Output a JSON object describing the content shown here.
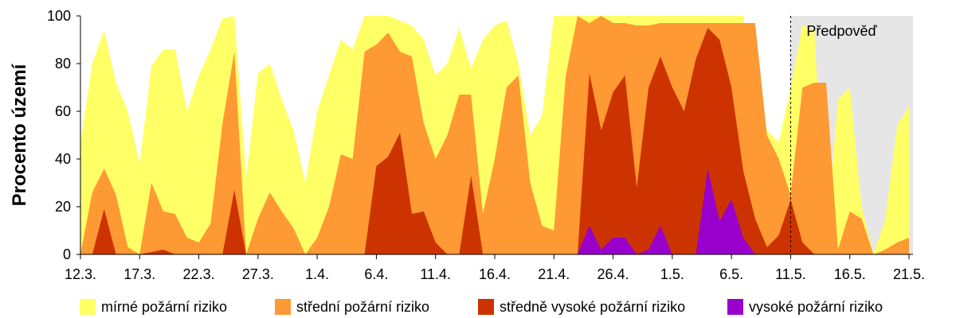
{
  "chart_data": {
    "type": "area",
    "stacked": false,
    "ylabel": "Procento území",
    "ylim": [
      0,
      100
    ],
    "yticks": [
      0,
      20,
      40,
      60,
      80,
      100
    ],
    "x_start": "12.3.",
    "x_end": "21.5.",
    "x_days": 71,
    "x_tick_labels": [
      "12.3.",
      "17.3.",
      "22.3.",
      "27.3.",
      "1.4.",
      "6.4.",
      "11.4.",
      "16.4.",
      "21.4.",
      "26.4.",
      "1.5.",
      "6.5.",
      "11.5.",
      "16.5.",
      "21.5."
    ],
    "x_tick_step_days": 5,
    "forecast_label": "Předpověď",
    "forecast_start": "11.5.",
    "legend_position": "bottom",
    "series": [
      {
        "name": "mírné požární riziko",
        "color": "#FFFF66",
        "values": [
          47,
          80,
          94,
          72,
          60,
          38,
          79,
          86,
          86,
          60,
          75,
          86,
          99,
          100,
          32,
          76,
          80,
          65,
          52,
          30,
          60,
          75,
          90,
          86,
          100,
          100,
          100,
          98,
          96,
          90,
          75,
          80,
          95,
          78,
          90,
          96,
          98,
          80,
          50,
          58,
          100,
          100,
          100,
          100,
          100,
          100,
          100,
          100,
          100,
          100,
          100,
          100,
          100,
          100,
          100,
          100,
          100,
          68,
          52,
          47,
          70,
          96,
          94,
          5,
          65,
          70,
          20,
          0,
          15,
          54,
          62
        ]
      },
      {
        "name": "střední požární riziko",
        "color": "#FF9933",
        "values": [
          0,
          26,
          36,
          25,
          3,
          0,
          30,
          18,
          17,
          7,
          5,
          13,
          55,
          85,
          0,
          15,
          26,
          18,
          11,
          0,
          7,
          20,
          42,
          40,
          85,
          88,
          93,
          85,
          83,
          55,
          40,
          50,
          67,
          67,
          17,
          40,
          70,
          75,
          30,
          12,
          10,
          75,
          100,
          97,
          100,
          97,
          97,
          96,
          96,
          97,
          97,
          97,
          97,
          97,
          97,
          97,
          97,
          97,
          50,
          40,
          25,
          70,
          72,
          72,
          2,
          18,
          15,
          0,
          2,
          5,
          7
        ]
      },
      {
        "name": "středně vysoké požární riziko",
        "color": "#CC3300",
        "values": [
          0,
          0,
          19,
          0,
          0,
          0,
          1,
          2,
          0,
          0,
          0,
          0,
          0,
          27,
          0,
          0,
          0,
          0,
          0,
          0,
          0,
          0,
          0,
          0,
          0,
          37,
          41,
          51,
          17,
          18,
          5,
          0,
          0,
          33,
          0,
          0,
          0,
          0,
          0,
          0,
          0,
          0,
          0,
          76,
          52,
          68,
          75,
          28,
          70,
          83,
          70,
          60,
          82,
          95,
          90,
          70,
          35,
          15,
          3,
          8,
          23,
          5,
          0,
          0,
          0,
          0,
          0,
          0,
          0,
          0,
          0
        ]
      },
      {
        "name": "vysoké požární riziko",
        "color": "#9900CC",
        "values": [
          0,
          0,
          0,
          0,
          0,
          0,
          0,
          0,
          0,
          0,
          0,
          0,
          0,
          0,
          0,
          0,
          0,
          0,
          0,
          0,
          0,
          0,
          0,
          0,
          0,
          0,
          0,
          0,
          0,
          0,
          0,
          0,
          0,
          0,
          0,
          0,
          0,
          0,
          0,
          0,
          0,
          0,
          0,
          12,
          2,
          7,
          7,
          0,
          2,
          12,
          0,
          0,
          0,
          36,
          14,
          23,
          7,
          0,
          0,
          0,
          0,
          0,
          0,
          0,
          0,
          0,
          0,
          0,
          0,
          0,
          0
        ]
      }
    ]
  }
}
